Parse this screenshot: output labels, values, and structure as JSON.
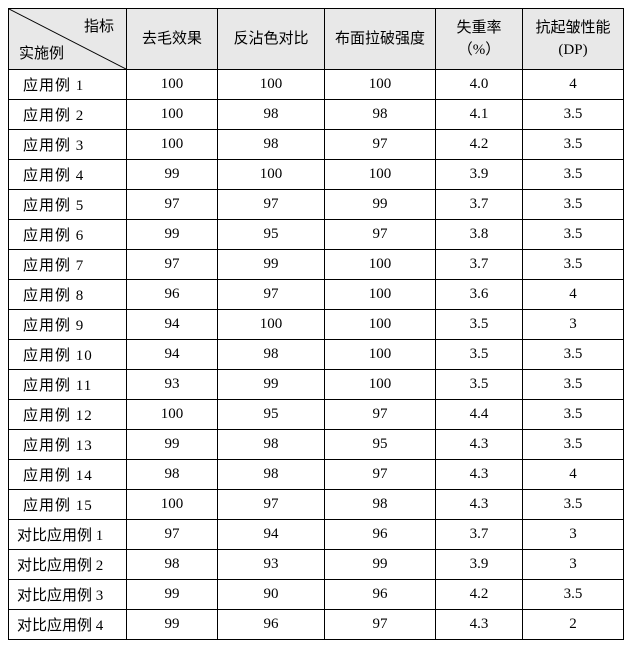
{
  "header": {
    "diag_top": "指标",
    "diag_bottom": "实施例",
    "cols": [
      "去毛效果",
      "反沾色对比",
      "布面拉破强度",
      "失重率\n（%）",
      "抗起皱性能\n(DP)"
    ]
  },
  "rows": [
    {
      "label": "应用例 1",
      "comp": false,
      "v": [
        "100",
        "100",
        "100",
        "4.0",
        "4"
      ]
    },
    {
      "label": "应用例 2",
      "comp": false,
      "v": [
        "100",
        "98",
        "98",
        "4.1",
        "3.5"
      ]
    },
    {
      "label": "应用例 3",
      "comp": false,
      "v": [
        "100",
        "98",
        "97",
        "4.2",
        "3.5"
      ]
    },
    {
      "label": "应用例 4",
      "comp": false,
      "v": [
        "99",
        "100",
        "100",
        "3.9",
        "3.5"
      ]
    },
    {
      "label": "应用例 5",
      "comp": false,
      "v": [
        "97",
        "97",
        "99",
        "3.7",
        "3.5"
      ]
    },
    {
      "label": "应用例 6",
      "comp": false,
      "v": [
        "99",
        "95",
        "97",
        "3.8",
        "3.5"
      ]
    },
    {
      "label": "应用例 7",
      "comp": false,
      "v": [
        "97",
        "99",
        "100",
        "3.7",
        "3.5"
      ]
    },
    {
      "label": "应用例 8",
      "comp": false,
      "v": [
        "96",
        "97",
        "100",
        "3.6",
        "4"
      ]
    },
    {
      "label": "应用例 9",
      "comp": false,
      "v": [
        "94",
        "100",
        "100",
        "3.5",
        "3"
      ]
    },
    {
      "label": "应用例 10",
      "comp": false,
      "v": [
        "94",
        "98",
        "100",
        "3.5",
        "3.5"
      ]
    },
    {
      "label": "应用例 11",
      "comp": false,
      "v": [
        "93",
        "99",
        "100",
        "3.5",
        "3.5"
      ]
    },
    {
      "label": "应用例 12",
      "comp": false,
      "v": [
        "100",
        "95",
        "97",
        "4.4",
        "3.5"
      ]
    },
    {
      "label": "应用例 13",
      "comp": false,
      "v": [
        "99",
        "98",
        "95",
        "4.3",
        "3.5"
      ]
    },
    {
      "label": "应用例 14",
      "comp": false,
      "v": [
        "98",
        "98",
        "97",
        "4.3",
        "4"
      ]
    },
    {
      "label": "应用例 15",
      "comp": false,
      "v": [
        "100",
        "97",
        "98",
        "4.3",
        "3.5"
      ]
    },
    {
      "label": "对比应用例 1",
      "comp": true,
      "v": [
        "97",
        "94",
        "96",
        "3.7",
        "3"
      ]
    },
    {
      "label": "对比应用例 2",
      "comp": true,
      "v": [
        "98",
        "93",
        "99",
        "3.9",
        "3"
      ]
    },
    {
      "label": "对比应用例 3",
      "comp": true,
      "v": [
        "99",
        "90",
        "96",
        "4.2",
        "3.5"
      ]
    },
    {
      "label": "对比应用例 4",
      "comp": true,
      "v": [
        "99",
        "96",
        "97",
        "4.3",
        "2"
      ]
    }
  ],
  "colors": {
    "header_bg": "#e8e8e8",
    "border": "#000000",
    "background": "#ffffff",
    "text": "#000000"
  }
}
